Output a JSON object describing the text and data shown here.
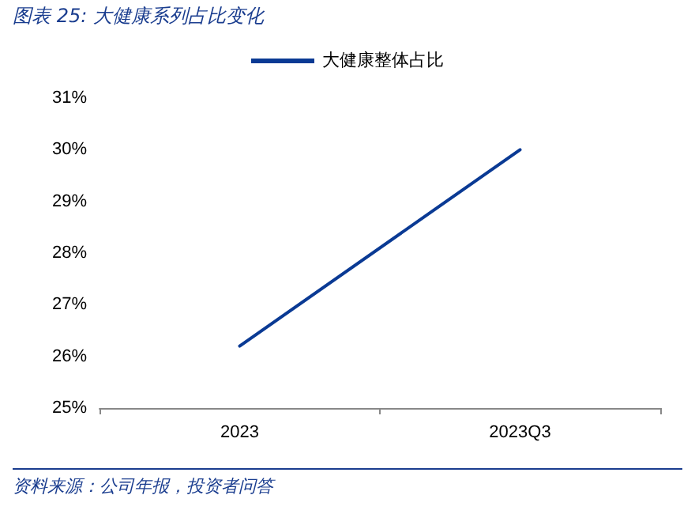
{
  "chart_data": {
    "type": "line",
    "title": "图表 25: 大健康系列占比变化",
    "categories": [
      "2023",
      "2023Q3"
    ],
    "series": [
      {
        "name": "大健康整体占比",
        "color": "#0a3a94",
        "values": [
          26.2,
          30.0
        ]
      }
    ],
    "ylim": [
      25,
      31
    ],
    "yticks": [
      {
        "value": 25,
        "label": "25%"
      },
      {
        "value": 26,
        "label": "26%"
      },
      {
        "value": 27,
        "label": "27%"
      },
      {
        "value": 28,
        "label": "28%"
      },
      {
        "value": 29,
        "label": "29%"
      },
      {
        "value": 30,
        "label": "30%"
      },
      {
        "value": 31,
        "label": "31%"
      }
    ],
    "grid": false,
    "legend": "top",
    "marker": "none",
    "line_style": "solid",
    "annotations": [
      "资料来源：公司年报，投资者问答"
    ]
  }
}
